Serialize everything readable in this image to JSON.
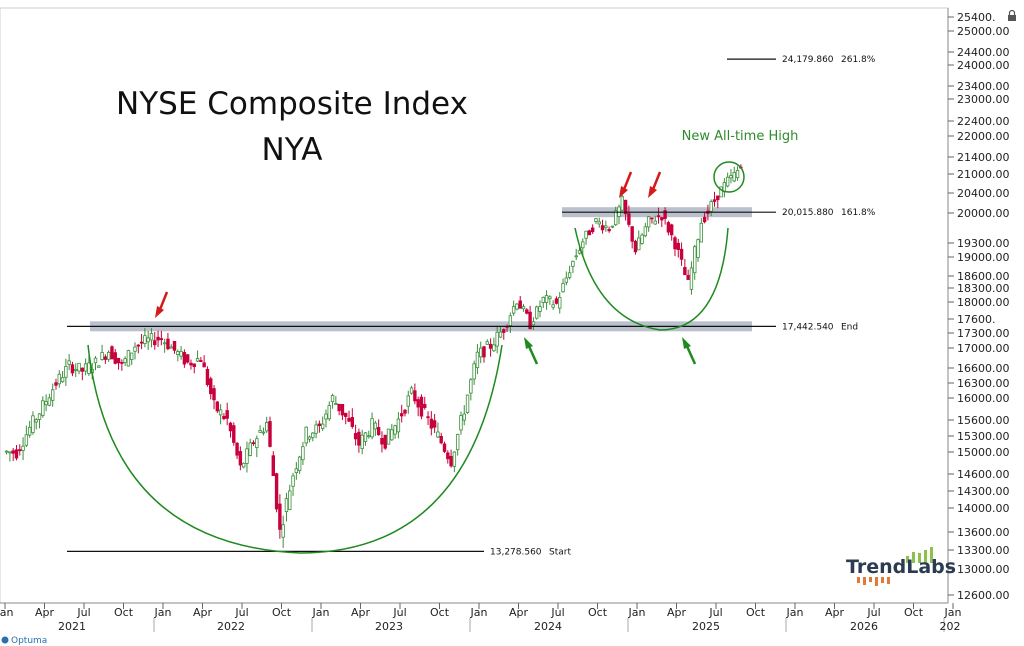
{
  "chart_data": {
    "type": "candlestick",
    "title": "NYSE Composite Index",
    "subtitle": "NYA",
    "y_ticks": [
      25400,
      25000,
      24400,
      24000,
      23400,
      23000,
      22400,
      22000,
      21400,
      21000,
      20400,
      20000,
      19300,
      19000,
      18600,
      18300,
      18000,
      17600,
      17300,
      17000,
      16600,
      16300,
      16000,
      15600,
      15300,
      15000,
      14600,
      14300,
      14000,
      13600,
      13300,
      13000,
      12600
    ],
    "y_tick_labels": [
      "25400.",
      "25000.00",
      "24400.00",
      "24000.00",
      "23400.00",
      "23000.00",
      "22400.00",
      "22000.00",
      "21400.00",
      "21000.00",
      "20400.00",
      "20000.00",
      "19300.00",
      "19000.00",
      "18600.00",
      "18300.00",
      "18000.00",
      "17600.",
      "17300.00",
      "17000.00",
      "16600.00",
      "16300.00",
      "16000.00",
      "15600.00",
      "15300.00",
      "15000.00",
      "14600.00",
      "14300.00",
      "14000.00",
      "13600.00",
      "13300.00",
      "13000.00",
      "12600.00"
    ],
    "x_month_labels": [
      "Jan",
      "Apr",
      "Jul",
      "Oct",
      "Jan",
      "Apr",
      "Jul",
      "Oct",
      "Jan",
      "Apr",
      "Jul",
      "Oct",
      "Jan",
      "Apr",
      "Jul",
      "Oct",
      "Jan",
      "Apr",
      "Jul",
      "Oct",
      "Jan",
      "Apr",
      "Jul",
      "Oct",
      "Jan"
    ],
    "x_year_labels": [
      "2021",
      "2022",
      "2023",
      "2024",
      "2025",
      "2026",
      "202"
    ],
    "levels": [
      {
        "value": 24179.86,
        "label": "24,179.860",
        "tag": "261.8%"
      },
      {
        "value": 20015.88,
        "label": "20,015.880",
        "tag": "161.8%"
      },
      {
        "value": 17442.54,
        "label": "17,442.540",
        "tag": "End"
      },
      {
        "value": 13278.56,
        "label": "13,278.560",
        "tag": "Start"
      }
    ],
    "annotations": {
      "new_high": "New All-time High"
    },
    "series": [
      {
        "date": "2021-01",
        "close": 15000
      },
      {
        "date": "2021-02",
        "close": 15450
      },
      {
        "date": "2021-03",
        "close": 15850
      },
      {
        "date": "2021-04",
        "close": 16300
      },
      {
        "date": "2021-05",
        "close": 16650
      },
      {
        "date": "2021-06",
        "close": 16550
      },
      {
        "date": "2021-07",
        "close": 16700
      },
      {
        "date": "2021-08",
        "close": 16950
      },
      {
        "date": "2021-09",
        "close": 16650
      },
      {
        "date": "2021-10",
        "close": 17050
      },
      {
        "date": "2021-11",
        "close": 17150
      },
      {
        "date": "2021-12",
        "close": 17200
      },
      {
        "date": "2022-01",
        "close": 16950
      },
      {
        "date": "2022-02",
        "close": 16700
      },
      {
        "date": "2022-03",
        "close": 16800
      },
      {
        "date": "2022-04",
        "close": 15850
      },
      {
        "date": "2022-05",
        "close": 15600
      },
      {
        "date": "2022-06",
        "close": 14700
      },
      {
        "date": "2022-07",
        "close": 15200
      },
      {
        "date": "2022-08",
        "close": 15550
      },
      {
        "date": "2022-09",
        "close": 13600
      },
      {
        "date": "2022-10",
        "close": 14600
      },
      {
        "date": "2022-11",
        "close": 15350
      },
      {
        "date": "2022-12",
        "close": 15450
      },
      {
        "date": "2023-01",
        "close": 16000
      },
      {
        "date": "2023-02",
        "close": 15650
      },
      {
        "date": "2023-03",
        "close": 15150
      },
      {
        "date": "2023-04",
        "close": 15500
      },
      {
        "date": "2023-05",
        "close": 15200
      },
      {
        "date": "2023-06",
        "close": 15600
      },
      {
        "date": "2023-07",
        "close": 16100
      },
      {
        "date": "2023-08",
        "close": 15700
      },
      {
        "date": "2023-09",
        "close": 15300
      },
      {
        "date": "2023-10",
        "close": 14850
      },
      {
        "date": "2023-11",
        "close": 15800
      },
      {
        "date": "2023-12",
        "close": 16850
      },
      {
        "date": "2024-01",
        "close": 17050
      },
      {
        "date": "2024-02",
        "close": 17400
      },
      {
        "date": "2024-03",
        "close": 18050
      },
      {
        "date": "2024-04",
        "close": 17500
      },
      {
        "date": "2024-05",
        "close": 18050
      },
      {
        "date": "2024-06",
        "close": 17950
      },
      {
        "date": "2024-07",
        "close": 18750
      },
      {
        "date": "2024-08",
        "close": 19350
      },
      {
        "date": "2024-09",
        "close": 19800
      },
      {
        "date": "2024-10",
        "close": 19650
      },
      {
        "date": "2024-11",
        "close": 20200
      },
      {
        "date": "2024-12",
        "close": 19150
      },
      {
        "date": "2025-01",
        "close": 19800
      },
      {
        "date": "2025-02",
        "close": 19950
      },
      {
        "date": "2025-03",
        "close": 19300
      },
      {
        "date": "2025-04",
        "close": 18400
      },
      {
        "date": "2025-05",
        "close": 19800
      },
      {
        "date": "2025-06",
        "close": 20250
      },
      {
        "date": "2025-07",
        "close": 20800
      },
      {
        "date": "2025-08",
        "close": 21150
      }
    ]
  },
  "branding": {
    "logo_text": "TrendLabs",
    "source": "Optuma"
  },
  "colors": {
    "up": "#3a8f3a",
    "down": "#c8003c",
    "arc": "#1f8a1f",
    "arrow_red": "#d41a1a",
    "arrow_green": "#1f8a1f",
    "band": "#aeb6c4"
  }
}
